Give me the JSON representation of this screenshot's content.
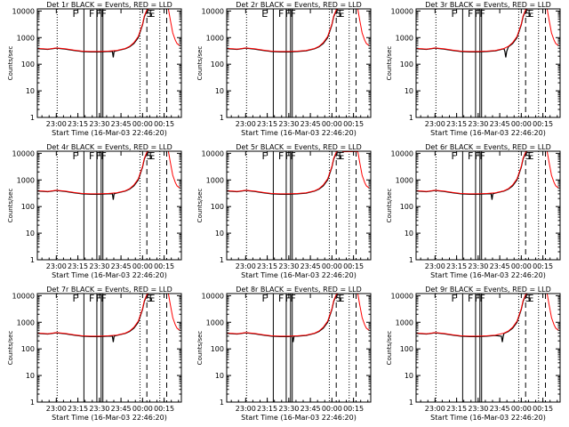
{
  "chart_data": [
    {
      "title": "Det 1r BLACK = Events, RED = LLD",
      "events": [
        "F",
        "F",
        "F",
        "F",
        "S",
        "E"
      ],
      "dip_x": 23.66,
      "gap_red": false
    },
    {
      "title": "Det 2r BLACK = Events, RED = LLD",
      "events": [
        "E",
        "F",
        "F",
        "F",
        "S",
        "E"
      ],
      "dip_x": null,
      "gap_red": false
    },
    {
      "title": "Det 3r BLACK = Events, RED = LLD",
      "events": [
        "F",
        "F",
        "F",
        "F",
        "S",
        "E"
      ],
      "dip_x": 23.82,
      "gap_red": false
    },
    {
      "title": "Det 4r BLACK = Events, RED = LLD",
      "events": [
        "F",
        "F",
        "F",
        "F",
        "S",
        "E"
      ],
      "dip_x": 23.66,
      "gap_red": false
    },
    {
      "title": "Det 5r BLACK = Events, RED = LLD",
      "events": [
        "F",
        "F",
        "F",
        "F",
        "S",
        "E"
      ],
      "dip_x": null,
      "gap_red": true
    },
    {
      "title": "Det 6r BLACK = Events, RED = LLD",
      "events": [
        "F",
        "F",
        "F",
        "F",
        "S",
        "E"
      ],
      "dip_x": 23.66,
      "gap_red": false
    },
    {
      "title": "Det 7r BLACK = Events, RED = LLD",
      "events": [
        "F",
        "F",
        "F",
        "F",
        "S",
        "E"
      ],
      "dip_x": 23.66,
      "gap_red": false
    },
    {
      "title": "Det 8r BLACK = Events, RED = LLD",
      "events": [
        "F",
        "F",
        "F",
        "F",
        "S",
        "E"
      ],
      "dip_x": 23.55,
      "gap_red": false
    },
    {
      "title": "Det 9r BLACK = Events, RED = LLD",
      "events": [
        "F",
        "F",
        "F",
        "F",
        "S",
        "E"
      ],
      "dip_x": 23.78,
      "gap_red": false
    }
  ],
  "shared": {
    "type": "line",
    "xlabel": "Start Time (16-Mar-03 22:46:20)",
    "ylabel": "Counts/sec",
    "xticks": [
      "23:00",
      "23:15",
      "23:30",
      "23:45",
      "00:00",
      "00:15"
    ],
    "xtick_values": [
      23.0,
      23.25,
      23.5,
      23.75,
      24.0,
      24.25
    ],
    "yticks": [
      "1",
      "10",
      "100",
      "1000",
      "10000"
    ],
    "ytick_values": [
      1,
      10,
      100,
      1000,
      10000
    ],
    "xlim": [
      22.78,
      24.45
    ],
    "ylim": [
      1,
      12000
    ],
    "yscale": "log",
    "dotted_x": [
      23.01,
      23.97,
      24.2
    ],
    "solid_x": [
      23.32,
      23.47,
      23.52,
      23.54
    ],
    "dashed_x": [
      24.05,
      24.28
    ],
    "event_x": [
      23.22,
      23.41,
      23.49,
      23.55,
      24.08,
      24.11
    ],
    "series": [
      {
        "name": "BLACK = Events",
        "color": "#000000",
        "x": [
          22.78,
          22.85,
          22.9,
          23.0,
          23.1,
          23.2,
          23.3,
          23.4,
          23.5,
          23.6,
          23.7,
          23.8,
          23.85,
          23.9,
          23.95,
          24.0,
          24.02,
          24.05,
          24.07
        ],
        "y": [
          380,
          370,
          360,
          400,
          370,
          330,
          300,
          290,
          290,
          300,
          320,
          380,
          450,
          600,
          1000,
          3000,
          6000,
          10500,
          12000
        ]
      },
      {
        "name": "RED = LLD",
        "color": "#ff0000",
        "x": [
          22.78,
          22.85,
          22.9,
          23.0,
          23.1,
          23.2,
          23.3,
          23.4,
          23.5,
          23.6,
          23.7,
          23.8,
          23.85,
          23.9,
          23.95,
          24.0,
          24.02,
          24.05,
          24.07
        ],
        "y": [
          390,
          380,
          370,
          410,
          380,
          340,
          310,
          300,
          300,
          310,
          330,
          390,
          470,
          650,
          1100,
          3200,
          6500,
          11000,
          12000
        ]
      },
      {
        "name": "decay",
        "color": "#ff0000",
        "x": [
          24.3,
          24.32,
          24.35,
          24.38,
          24.4,
          24.43
        ],
        "y": [
          12000,
          5000,
          1500,
          800,
          600,
          500
        ]
      }
    ]
  }
}
